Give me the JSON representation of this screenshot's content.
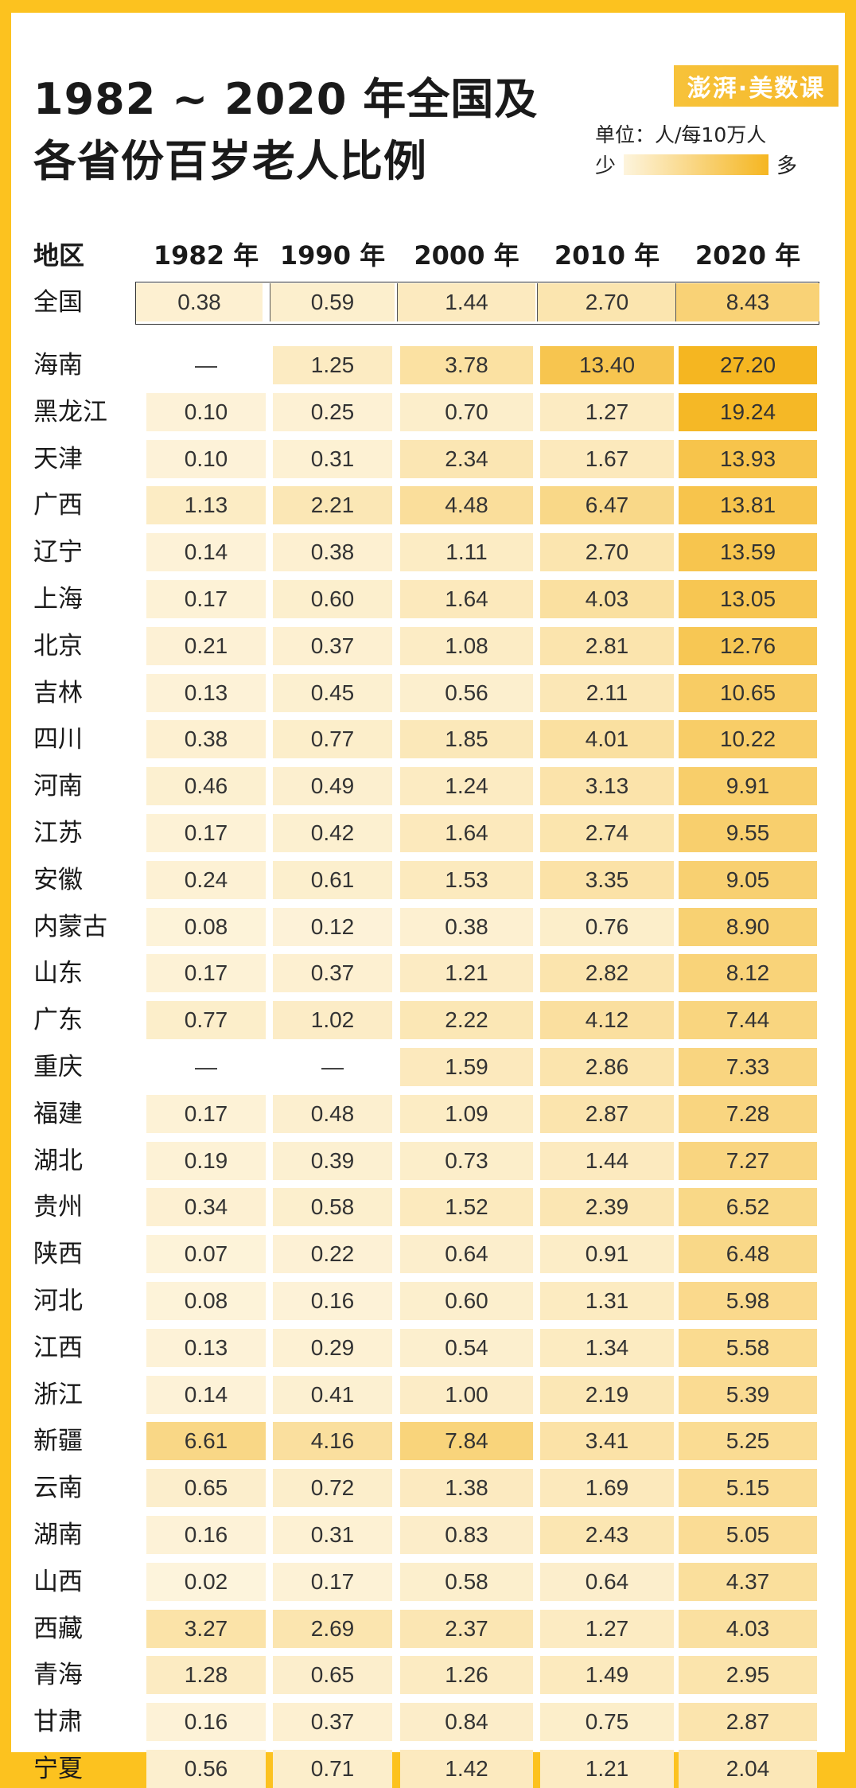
{
  "title_line1": "1982 ~ 2020 年全国及",
  "title_line2": "各省份百岁老人比例",
  "logo_text": "澎湃·美数课",
  "unit": "单位：人/每10万人",
  "legend": {
    "low": "少",
    "high": "多",
    "low_color": "#fdf4dd",
    "high_color": "#f5b621"
  },
  "chart_data": {
    "type": "heatmap",
    "title": "1982 ~ 2020 年全国及各省份百岁老人比例",
    "unit": "单位：人/每10万人",
    "row_header": "地区",
    "columns": [
      "1982 年",
      "1990 年",
      "2000 年",
      "2010 年",
      "2020 年"
    ],
    "national": {
      "name": "全国",
      "values": [
        "0.38",
        "0.59",
        "1.44",
        "2.70",
        "8.43"
      ]
    },
    "rows": [
      {
        "name": "海南",
        "values": [
          "—",
          "1.25",
          "3.78",
          "13.40",
          "27.20"
        ]
      },
      {
        "name": "黑龙江",
        "values": [
          "0.10",
          "0.25",
          "0.70",
          "1.27",
          "19.24"
        ]
      },
      {
        "name": "天津",
        "values": [
          "0.10",
          "0.31",
          "2.34",
          "1.67",
          "13.93"
        ]
      },
      {
        "name": "广西",
        "values": [
          "1.13",
          "2.21",
          "4.48",
          "6.47",
          "13.81"
        ]
      },
      {
        "name": "辽宁",
        "values": [
          "0.14",
          "0.38",
          "1.11",
          "2.70",
          "13.59"
        ]
      },
      {
        "name": "上海",
        "values": [
          "0.17",
          "0.60",
          "1.64",
          "4.03",
          "13.05"
        ]
      },
      {
        "name": "北京",
        "values": [
          "0.21",
          "0.37",
          "1.08",
          "2.81",
          "12.76"
        ]
      },
      {
        "name": "吉林",
        "values": [
          "0.13",
          "0.45",
          "0.56",
          "2.11",
          "10.65"
        ]
      },
      {
        "name": "四川",
        "values": [
          "0.38",
          "0.77",
          "1.85",
          "4.01",
          "10.22"
        ]
      },
      {
        "name": "河南",
        "values": [
          "0.46",
          "0.49",
          "1.24",
          "3.13",
          "9.91"
        ]
      },
      {
        "name": "江苏",
        "values": [
          "0.17",
          "0.42",
          "1.64",
          "2.74",
          "9.55"
        ]
      },
      {
        "name": "安徽",
        "values": [
          "0.24",
          "0.61",
          "1.53",
          "3.35",
          "9.05"
        ]
      },
      {
        "name": "内蒙古",
        "values": [
          "0.08",
          "0.12",
          "0.38",
          "0.76",
          "8.90"
        ]
      },
      {
        "name": "山东",
        "values": [
          "0.17",
          "0.37",
          "1.21",
          "2.82",
          "8.12"
        ]
      },
      {
        "name": "广东",
        "values": [
          "0.77",
          "1.02",
          "2.22",
          "4.12",
          "7.44"
        ]
      },
      {
        "name": "重庆",
        "values": [
          "—",
          "—",
          "1.59",
          "2.86",
          "7.33"
        ]
      },
      {
        "name": "福建",
        "values": [
          "0.17",
          "0.48",
          "1.09",
          "2.87",
          "7.28"
        ]
      },
      {
        "name": "湖北",
        "values": [
          "0.19",
          "0.39",
          "0.73",
          "1.44",
          "7.27"
        ]
      },
      {
        "name": "贵州",
        "values": [
          "0.34",
          "0.58",
          "1.52",
          "2.39",
          "6.52"
        ]
      },
      {
        "name": "陕西",
        "values": [
          "0.07",
          "0.22",
          "0.64",
          "0.91",
          "6.48"
        ]
      },
      {
        "name": "河北",
        "values": [
          "0.08",
          "0.16",
          "0.60",
          "1.31",
          "5.98"
        ]
      },
      {
        "name": "江西",
        "values": [
          "0.13",
          "0.29",
          "0.54",
          "1.34",
          "5.58"
        ]
      },
      {
        "name": "浙江",
        "values": [
          "0.14",
          "0.41",
          "1.00",
          "2.19",
          "5.39"
        ]
      },
      {
        "name": "新疆",
        "values": [
          "6.61",
          "4.16",
          "7.84",
          "3.41",
          "5.25"
        ]
      },
      {
        "name": "云南",
        "values": [
          "0.65",
          "0.72",
          "1.38",
          "1.69",
          "5.15"
        ]
      },
      {
        "name": "湖南",
        "values": [
          "0.16",
          "0.31",
          "0.83",
          "2.43",
          "5.05"
        ]
      },
      {
        "name": "山西",
        "values": [
          "0.02",
          "0.17",
          "0.58",
          "0.64",
          "4.37"
        ]
      },
      {
        "name": "西藏",
        "values": [
          "3.27",
          "2.69",
          "2.37",
          "1.27",
          "4.03"
        ]
      },
      {
        "name": "青海",
        "values": [
          "1.28",
          "0.65",
          "1.26",
          "1.49",
          "2.95"
        ]
      },
      {
        "name": "甘肃",
        "values": [
          "0.16",
          "0.37",
          "0.84",
          "0.75",
          "2.87"
        ]
      },
      {
        "name": "宁夏",
        "values": [
          "0.56",
          "0.71",
          "1.42",
          "1.21",
          "2.04"
        ]
      }
    ]
  }
}
